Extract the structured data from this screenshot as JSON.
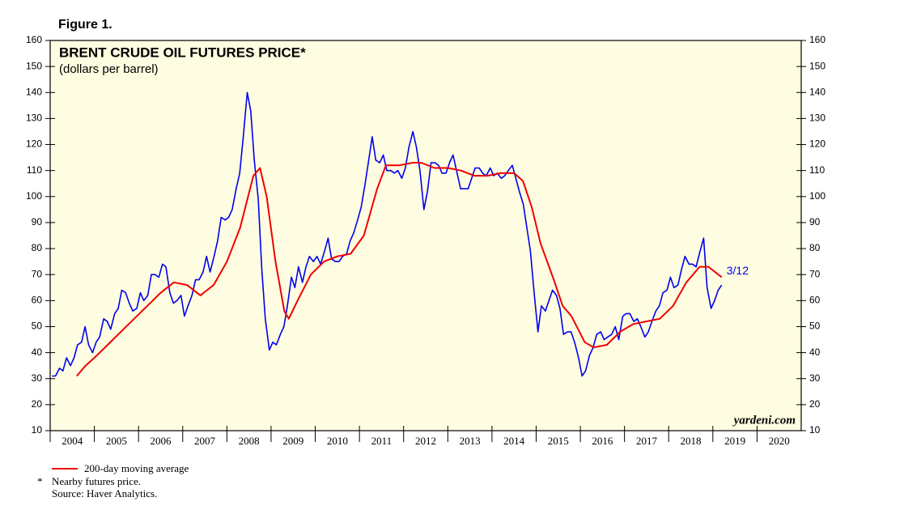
{
  "chart_data": {
    "type": "line",
    "figure_label": "Figure 1.",
    "title": "BRENT CRUDE OIL FUTURES PRICE*",
    "subtitle": "(dollars per barrel)",
    "watermark": "yardeni.com",
    "annotation": "3/12",
    "notes": [
      "*",
      "Nearby futures price.",
      "Source: Haver Analytics."
    ],
    "xlim": [
      2004,
      2021
    ],
    "xticks": [
      2004,
      2005,
      2006,
      2007,
      2008,
      2009,
      2010,
      2011,
      2012,
      2013,
      2014,
      2015,
      2016,
      2017,
      2018,
      2019,
      2020
    ],
    "ylim": [
      10,
      160
    ],
    "yticks": [
      10,
      20,
      30,
      40,
      50,
      60,
      70,
      80,
      90,
      100,
      110,
      120,
      130,
      140,
      150,
      160
    ],
    "background": "#fffde1",
    "series": [
      {
        "color": "#0000ee",
        "x": [
          2004.04,
          2004.12,
          2004.21,
          2004.29,
          2004.37,
          2004.46,
          2004.54,
          2004.62,
          2004.71,
          2004.79,
          2004.87,
          2004.96,
          2005.04,
          2005.12,
          2005.21,
          2005.29,
          2005.37,
          2005.46,
          2005.54,
          2005.62,
          2005.71,
          2005.79,
          2005.87,
          2005.96,
          2006.04,
          2006.12,
          2006.21,
          2006.29,
          2006.37,
          2006.46,
          2006.54,
          2006.62,
          2006.71,
          2006.79,
          2006.87,
          2006.96,
          2007.04,
          2007.12,
          2007.21,
          2007.29,
          2007.37,
          2007.46,
          2007.54,
          2007.62,
          2007.71,
          2007.79,
          2007.87,
          2007.96,
          2008.04,
          2008.12,
          2008.21,
          2008.29,
          2008.37,
          2008.46,
          2008.54,
          2008.62,
          2008.71,
          2008.79,
          2008.87,
          2008.96,
          2009.04,
          2009.12,
          2009.21,
          2009.29,
          2009.37,
          2009.46,
          2009.54,
          2009.62,
          2009.71,
          2009.79,
          2009.87,
          2009.96,
          2010.04,
          2010.12,
          2010.21,
          2010.29,
          2010.37,
          2010.46,
          2010.54,
          2010.62,
          2010.71,
          2010.79,
          2010.87,
          2010.96,
          2011.04,
          2011.12,
          2011.21,
          2011.29,
          2011.37,
          2011.46,
          2011.54,
          2011.62,
          2011.71,
          2011.79,
          2011.87,
          2011.96,
          2012.04,
          2012.12,
          2012.21,
          2012.29,
          2012.37,
          2012.46,
          2012.54,
          2012.62,
          2012.71,
          2012.79,
          2012.87,
          2012.96,
          2013.04,
          2013.12,
          2013.21,
          2013.29,
          2013.37,
          2013.46,
          2013.54,
          2013.62,
          2013.71,
          2013.79,
          2013.87,
          2013.96,
          2014.04,
          2014.12,
          2014.21,
          2014.29,
          2014.37,
          2014.46,
          2014.54,
          2014.62,
          2014.71,
          2014.79,
          2014.87,
          2014.96,
          2015.04,
          2015.12,
          2015.21,
          2015.29,
          2015.37,
          2015.46,
          2015.54,
          2015.62,
          2015.71,
          2015.79,
          2015.87,
          2015.96,
          2016.04,
          2016.12,
          2016.21,
          2016.29,
          2016.37,
          2016.46,
          2016.54,
          2016.62,
          2016.71,
          2016.79,
          2016.87,
          2016.96,
          2017.04,
          2017.12,
          2017.21,
          2017.29,
          2017.37,
          2017.46,
          2017.54,
          2017.62,
          2017.71,
          2017.79,
          2017.87,
          2017.96,
          2018.04,
          2018.12,
          2018.21,
          2018.29,
          2018.37,
          2018.46,
          2018.54,
          2018.62,
          2018.71,
          2018.79,
          2018.87,
          2018.96,
          2019.04,
          2019.12,
          2019.2
        ],
        "values": [
          31,
          31,
          34,
          33,
          38,
          35,
          38,
          43,
          44,
          50,
          43,
          40,
          44,
          46,
          53,
          52,
          49,
          55,
          57,
          64,
          63,
          59,
          56,
          57,
          63,
          60,
          62,
          70,
          70,
          69,
          74,
          73,
          63,
          59,
          60,
          62,
          54,
          58,
          62,
          68,
          68,
          71,
          77,
          71,
          77,
          83,
          92,
          91,
          92,
          95,
          103,
          109,
          123,
          140,
          133,
          114,
          99,
          72,
          53,
          41,
          44,
          43,
          47,
          50,
          58,
          69,
          65,
          73,
          67,
          73,
          77,
          75,
          77,
          74,
          79,
          84,
          76,
          75,
          75,
          77,
          78,
          83,
          86,
          91,
          96,
          104,
          114,
          123,
          114,
          113,
          116,
          110,
          110,
          109,
          110,
          107,
          111,
          119,
          125,
          119,
          110,
          95,
          102,
          113,
          113,
          112,
          109,
          109,
          113,
          116,
          109,
          103,
          103,
          103,
          107,
          111,
          111,
          109,
          108,
          111,
          108,
          109,
          107,
          108,
          110,
          112,
          107,
          102,
          97,
          88,
          79,
          62,
          48,
          58,
          56,
          60,
          64,
          62,
          57,
          47,
          48,
          48,
          44,
          38,
          31,
          33,
          39,
          42,
          47,
          48,
          45,
          46,
          47,
          50,
          45,
          54,
          55,
          55,
          52,
          53,
          50,
          46,
          48,
          52,
          56,
          58,
          63,
          64,
          69,
          65,
          66,
          72,
          77,
          74,
          74,
          73,
          79,
          84,
          65,
          57,
          60,
          64,
          66
        ]
      },
      {
        "name": "200-day moving average",
        "color": "#ee0000",
        "x": [
          2004.6,
          2004.8,
          2005.0,
          2005.3,
          2005.6,
          2005.9,
          2006.2,
          2006.5,
          2006.8,
          2007.1,
          2007.4,
          2007.7,
          2008.0,
          2008.3,
          2008.6,
          2008.75,
          2008.9,
          2009.1,
          2009.3,
          2009.4,
          2009.6,
          2009.9,
          2010.2,
          2010.5,
          2010.8,
          2011.1,
          2011.4,
          2011.6,
          2011.9,
          2012.2,
          2012.4,
          2012.7,
          2013.0,
          2013.3,
          2013.6,
          2013.9,
          2014.2,
          2014.5,
          2014.7,
          2014.9,
          2015.1,
          2015.4,
          2015.6,
          2015.8,
          2016.1,
          2016.3,
          2016.6,
          2016.9,
          2017.2,
          2017.5,
          2017.8,
          2018.1,
          2018.4,
          2018.7,
          2018.9,
          2019.2
        ],
        "values": [
          31,
          35,
          38,
          43,
          48,
          53,
          58,
          63,
          67,
          66,
          62,
          66,
          75,
          88,
          108,
          111,
          100,
          75,
          56,
          53,
          60,
          70,
          75,
          77,
          78,
          85,
          103,
          112,
          112,
          113,
          113,
          111,
          111,
          110,
          108,
          108,
          109,
          109,
          106,
          96,
          82,
          68,
          58,
          54,
          44,
          42,
          43,
          48,
          51,
          52,
          53,
          58,
          67,
          73,
          73,
          69
        ]
      }
    ]
  }
}
